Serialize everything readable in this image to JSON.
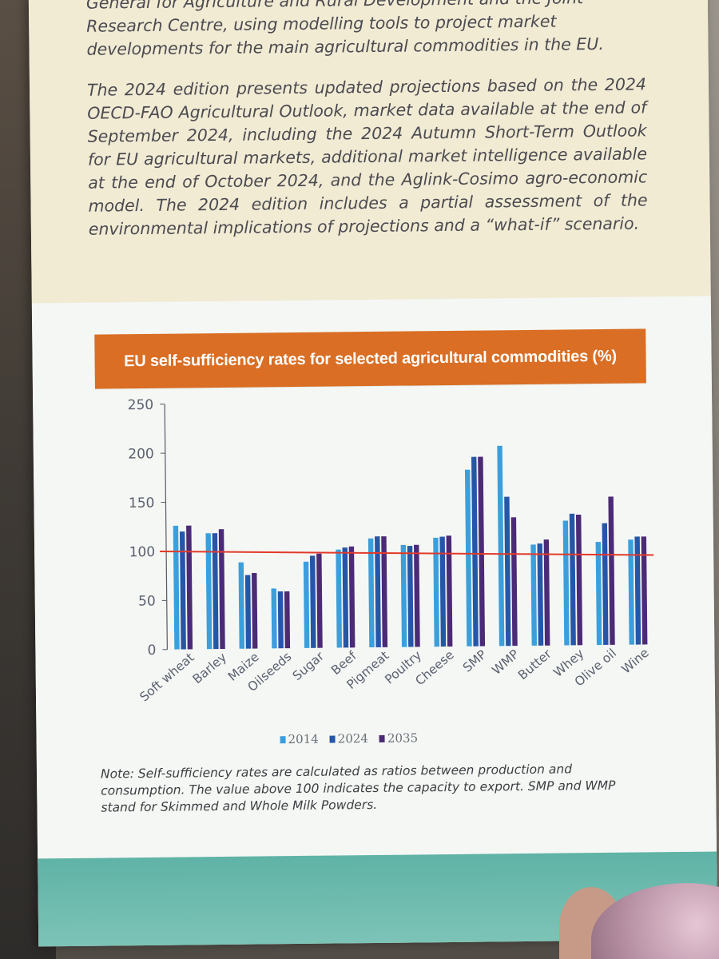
{
  "intro": {
    "paragraph1_lines": [
      "General for Agriculture and Rural Development and the Joint",
      "Research Centre, using modelling tools to project market",
      "developments for the main agricultural commodities in the EU."
    ],
    "paragraph2": "The 2024 edition presents updated projections based on the 2024 OECD-FAO Agricultural Outlook, market data available at the end of September 2024, including the 2024 Autumn Short-Term Outlook for EU agricultural markets, additional market intelligence available at the end of October 2024, and the Aglink-Cosimo agro-economic model. The 2024 edition includes a partial assessment of the environmental implications of projections and a “what-if” scenario."
  },
  "note": "Note: Self-sufficiency rates are calculated as ratios between production and consumption. The value above 100 indicates the capacity to export. SMP and WMP stand for Skimmed and Whole Milk Powders.",
  "colors": {
    "header": "#d96e24",
    "s2014": "#3b9fdc",
    "s2024": "#2556a8",
    "s2035": "#4b2a76",
    "ref_line": "#e23a2a"
  },
  "chart_data": {
    "type": "bar",
    "title": "EU self-sufficiency rates for selected agricultural commodities (%)",
    "categories": [
      "Soft wheat",
      "Barley",
      "Maize",
      "Oilseeds",
      "Sugar",
      "Beef",
      "Pigmeat",
      "Poultry",
      "Cheese",
      "SMP",
      "WMP",
      "Butter",
      "Whey",
      "Olive oil",
      "Wine"
    ],
    "series": [
      {
        "name": "2014",
        "values": [
          126,
          118,
          88,
          61,
          88,
          100,
          111,
          104,
          111,
          180,
          204,
          103,
          127,
          105,
          107
        ]
      },
      {
        "name": "2024",
        "values": [
          120,
          118,
          75,
          58,
          94,
          102,
          113,
          103,
          112,
          193,
          152,
          104,
          134,
          124,
          110
        ]
      },
      {
        "name": "2035",
        "values": [
          126,
          122,
          77,
          58,
          96,
          103,
          113,
          104,
          113,
          193,
          131,
          108,
          133,
          151,
          110
        ]
      }
    ],
    "yticks": [
      0,
      50,
      100,
      150,
      200,
      250
    ],
    "ylim": [
      0,
      250
    ],
    "reference_line": 100,
    "legend_position": "bottom"
  }
}
